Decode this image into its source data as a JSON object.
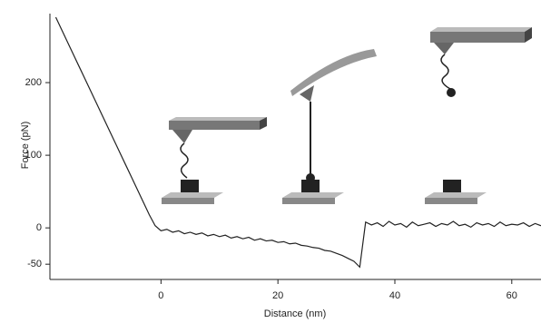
{
  "chart_data": {
    "type": "line",
    "y_label": "Force (pN)",
    "x_label": "Distance (nm)",
    "x": [
      -18,
      -17,
      -16,
      -15,
      -14,
      -13,
      -12,
      -11,
      -10,
      -9,
      -8,
      -7,
      -6,
      -5,
      -4,
      -3,
      -2,
      -1,
      0,
      1,
      2,
      3,
      4,
      5,
      6,
      7,
      8,
      9,
      10,
      11,
      12,
      13,
      14,
      15,
      16,
      17,
      18,
      19,
      20,
      21,
      22,
      23,
      24,
      25,
      26,
      27,
      28,
      29,
      30,
      31,
      32,
      33,
      34,
      35,
      36,
      37,
      38,
      39,
      40,
      41,
      42,
      43,
      44,
      45,
      46,
      47,
      48,
      49,
      50,
      51,
      52,
      53,
      54,
      55,
      56,
      57,
      58,
      59,
      60,
      61,
      62,
      63,
      64,
      65
    ],
    "values": [
      290,
      273,
      256,
      239,
      222,
      205,
      188,
      171,
      154,
      137,
      120,
      103,
      86,
      69,
      52,
      35,
      18,
      3,
      -4,
      -2,
      -6,
      -4,
      -8,
      -6,
      -9,
      -7,
      -11,
      -9,
      -12,
      -10,
      -14,
      -12,
      -15,
      -13,
      -17,
      -15,
      -18,
      -17,
      -20,
      -19,
      -22,
      -21,
      -24,
      -25,
      -27,
      -28,
      -31,
      -32,
      -35,
      -38,
      -42,
      -46,
      -54,
      8,
      4,
      7,
      2,
      9,
      4,
      6,
      1,
      8,
      3,
      5,
      7,
      2,
      6,
      4,
      9,
      3,
      5,
      1,
      7,
      4,
      6,
      2,
      8,
      3,
      5,
      4,
      7,
      2,
      6,
      3
    ],
    "color": "#222222",
    "xlim": [
      -19,
      65
    ],
    "ylim": [
      -71,
      295
    ],
    "xticks": [
      0,
      20,
      40,
      60
    ],
    "yticks": [
      -50,
      0,
      100,
      200
    ]
  }
}
